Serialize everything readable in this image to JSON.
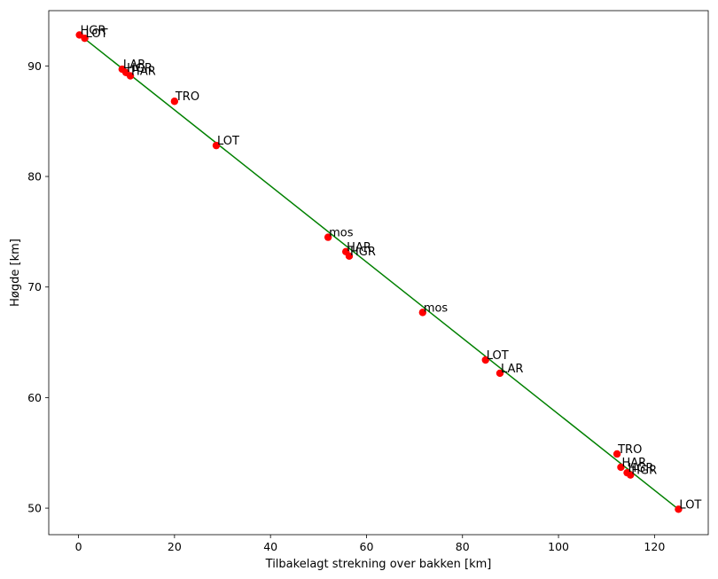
{
  "chart_data": {
    "type": "scatter",
    "title": "",
    "xlabel": "Tilbakelagt strekning over bakken [km]",
    "ylabel": "Høgde [km]",
    "xlim": [
      -6.2,
      131.2
    ],
    "ylim": [
      47.6,
      95.0
    ],
    "xticks": [
      0,
      20,
      40,
      60,
      80,
      100,
      120
    ],
    "yticks": [
      50,
      60,
      70,
      80,
      90
    ],
    "grid": false,
    "colors": {
      "points": "#ff0000",
      "line": "#008000",
      "axes": "#000000"
    },
    "points": [
      {
        "x": 0.2,
        "y": 92.8,
        "label": "HGR"
      },
      {
        "x": 1.3,
        "y": 92.5,
        "label": "LOT"
      },
      {
        "x": 9.1,
        "y": 89.7,
        "label": "LAR"
      },
      {
        "x": 9.9,
        "y": 89.4,
        "label": "HGR"
      },
      {
        "x": 10.8,
        "y": 89.1,
        "label": "HAR"
      },
      {
        "x": 20.0,
        "y": 86.8,
        "label": "TRO"
      },
      {
        "x": 28.7,
        "y": 82.8,
        "label": "LOT"
      },
      {
        "x": 52.0,
        "y": 74.5,
        "label": "mos"
      },
      {
        "x": 55.7,
        "y": 73.2,
        "label": "HAR"
      },
      {
        "x": 56.4,
        "y": 72.8,
        "label": "HGR"
      },
      {
        "x": 71.7,
        "y": 67.7,
        "label": "mos"
      },
      {
        "x": 84.8,
        "y": 63.4,
        "label": "LOT"
      },
      {
        "x": 87.8,
        "y": 62.2,
        "label": "LAR"
      },
      {
        "x": 112.2,
        "y": 54.9,
        "label": "TRO"
      },
      {
        "x": 113.0,
        "y": 53.7,
        "label": "HAR"
      },
      {
        "x": 114.3,
        "y": 53.2,
        "label": "HGR"
      },
      {
        "x": 115.0,
        "y": 53.0,
        "label": "HGR"
      },
      {
        "x": 125.0,
        "y": 49.9,
        "label": "LOT"
      }
    ],
    "fit_line": {
      "x": [
        0,
        125
      ],
      "y": [
        92.9,
        49.9
      ]
    }
  }
}
